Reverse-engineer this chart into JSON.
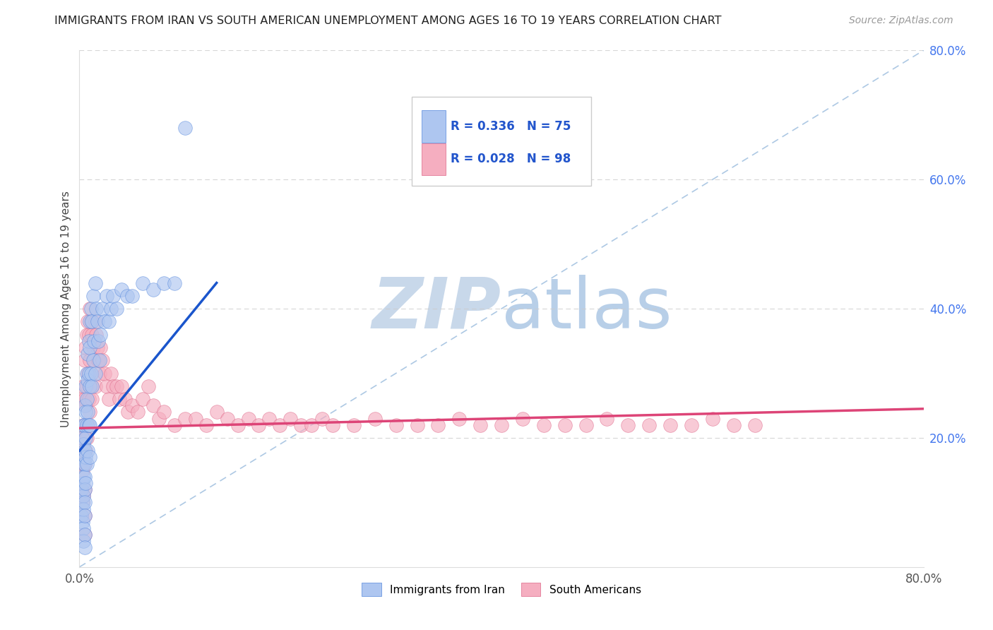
{
  "title": "IMMIGRANTS FROM IRAN VS SOUTH AMERICAN UNEMPLOYMENT AMONG AGES 16 TO 19 YEARS CORRELATION CHART",
  "source": "Source: ZipAtlas.com",
  "ylabel": "Unemployment Among Ages 16 to 19 years",
  "xlim": [
    0,
    0.8
  ],
  "ylim": [
    0,
    0.8
  ],
  "series1_color": "#aec6f0",
  "series2_color": "#f5aec0",
  "series1_edge": "#5588dd",
  "series2_edge": "#dd6688",
  "trendline1_color": "#1a55cc",
  "trendline2_color": "#dd4477",
  "dashed_line_color": "#99bbdd",
  "watermark_text_color": "#c8d8ea",
  "background_color": "#ffffff",
  "iran_x": [
    0.002,
    0.002,
    0.003,
    0.003,
    0.003,
    0.003,
    0.003,
    0.004,
    0.004,
    0.004,
    0.004,
    0.004,
    0.004,
    0.004,
    0.004,
    0.005,
    0.005,
    0.005,
    0.005,
    0.005,
    0.005,
    0.005,
    0.005,
    0.005,
    0.005,
    0.006,
    0.006,
    0.006,
    0.006,
    0.006,
    0.007,
    0.007,
    0.007,
    0.007,
    0.008,
    0.008,
    0.008,
    0.008,
    0.009,
    0.009,
    0.009,
    0.01,
    0.01,
    0.01,
    0.01,
    0.01,
    0.011,
    0.011,
    0.012,
    0.012,
    0.013,
    0.013,
    0.014,
    0.015,
    0.015,
    0.016,
    0.017,
    0.018,
    0.019,
    0.02,
    0.022,
    0.024,
    0.026,
    0.028,
    0.03,
    0.032,
    0.035,
    0.04,
    0.045,
    0.05,
    0.06,
    0.07,
    0.08,
    0.09,
    0.1
  ],
  "iran_y": [
    0.12,
    0.08,
    0.2,
    0.17,
    0.13,
    0.1,
    0.07,
    0.22,
    0.19,
    0.16,
    0.14,
    0.11,
    0.09,
    0.06,
    0.04,
    0.25,
    0.22,
    0.18,
    0.16,
    0.14,
    0.12,
    0.1,
    0.08,
    0.05,
    0.03,
    0.28,
    0.24,
    0.2,
    0.17,
    0.13,
    0.3,
    0.26,
    0.22,
    0.16,
    0.33,
    0.29,
    0.24,
    0.18,
    0.35,
    0.3,
    0.22,
    0.38,
    0.34,
    0.28,
    0.22,
    0.17,
    0.4,
    0.3,
    0.38,
    0.28,
    0.42,
    0.32,
    0.35,
    0.44,
    0.3,
    0.4,
    0.38,
    0.35,
    0.32,
    0.36,
    0.4,
    0.38,
    0.42,
    0.38,
    0.4,
    0.42,
    0.4,
    0.43,
    0.42,
    0.42,
    0.44,
    0.43,
    0.44,
    0.44,
    0.68
  ],
  "south_x": [
    0.002,
    0.002,
    0.003,
    0.003,
    0.003,
    0.003,
    0.004,
    0.004,
    0.004,
    0.004,
    0.005,
    0.005,
    0.005,
    0.005,
    0.005,
    0.005,
    0.005,
    0.006,
    0.006,
    0.006,
    0.007,
    0.007,
    0.007,
    0.008,
    0.008,
    0.008,
    0.009,
    0.009,
    0.01,
    0.01,
    0.01,
    0.011,
    0.011,
    0.012,
    0.012,
    0.013,
    0.014,
    0.015,
    0.015,
    0.016,
    0.017,
    0.018,
    0.019,
    0.02,
    0.022,
    0.024,
    0.026,
    0.028,
    0.03,
    0.032,
    0.035,
    0.038,
    0.04,
    0.043,
    0.046,
    0.05,
    0.055,
    0.06,
    0.065,
    0.07,
    0.075,
    0.08,
    0.09,
    0.1,
    0.11,
    0.12,
    0.13,
    0.14,
    0.15,
    0.16,
    0.17,
    0.18,
    0.19,
    0.2,
    0.21,
    0.22,
    0.23,
    0.24,
    0.26,
    0.28,
    0.3,
    0.32,
    0.34,
    0.36,
    0.38,
    0.4,
    0.42,
    0.44,
    0.46,
    0.48,
    0.5,
    0.52,
    0.54,
    0.56,
    0.58,
    0.6,
    0.62,
    0.64
  ],
  "south_y": [
    0.18,
    0.12,
    0.26,
    0.2,
    0.15,
    0.1,
    0.28,
    0.22,
    0.16,
    0.11,
    0.32,
    0.26,
    0.2,
    0.16,
    0.12,
    0.08,
    0.05,
    0.34,
    0.25,
    0.18,
    0.36,
    0.28,
    0.2,
    0.38,
    0.3,
    0.22,
    0.36,
    0.26,
    0.4,
    0.32,
    0.24,
    0.38,
    0.28,
    0.36,
    0.26,
    0.34,
    0.32,
    0.38,
    0.28,
    0.36,
    0.34,
    0.32,
    0.3,
    0.34,
    0.32,
    0.3,
    0.28,
    0.26,
    0.3,
    0.28,
    0.28,
    0.26,
    0.28,
    0.26,
    0.24,
    0.25,
    0.24,
    0.26,
    0.28,
    0.25,
    0.23,
    0.24,
    0.22,
    0.23,
    0.23,
    0.22,
    0.24,
    0.23,
    0.22,
    0.23,
    0.22,
    0.23,
    0.22,
    0.23,
    0.22,
    0.22,
    0.23,
    0.22,
    0.22,
    0.23,
    0.22,
    0.22,
    0.22,
    0.23,
    0.22,
    0.22,
    0.23,
    0.22,
    0.22,
    0.22,
    0.23,
    0.22,
    0.22,
    0.22,
    0.22,
    0.23,
    0.22,
    0.22
  ],
  "trendline1_x": [
    0.0,
    0.13
  ],
  "trendline1_y": [
    0.18,
    0.44
  ],
  "trendline2_x": [
    0.0,
    0.8
  ],
  "trendline2_y": [
    0.215,
    0.245
  ]
}
